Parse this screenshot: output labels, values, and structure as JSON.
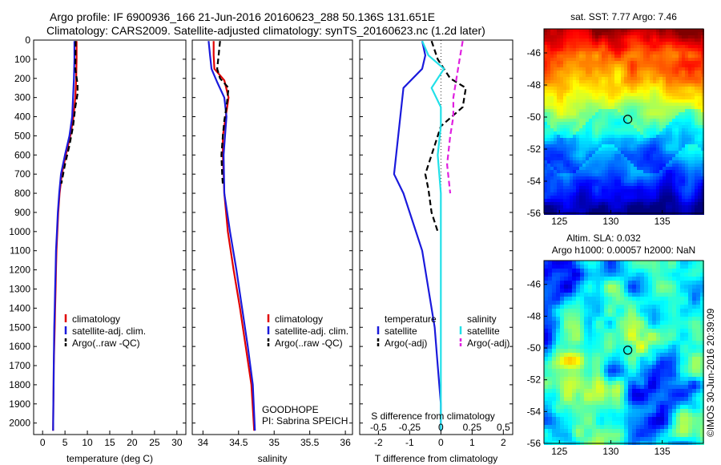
{
  "header": {
    "line1": "Argo profile: IF 6900936_166 21-Jun-2016 20160623_288 50.136S 131.651E",
    "line2": "Climatology: CARS2009. Satellite-adjusted climatology: synTS_20160623.nc (1.2d later)"
  },
  "credit": "©IMOS 30-Jun-2016 20:39:09",
  "colors": {
    "climatology": "#e00000",
    "satellite": "#1a1adc",
    "argo": "#000000",
    "satellite_s": "#22e0e8",
    "argo_s": "#e020e0"
  },
  "chart_data": [
    {
      "type": "line",
      "name": "temperature-profile",
      "xlabel": "temperature (deg C)",
      "ylabel": "",
      "xlim": [
        -2,
        32
      ],
      "ylim": [
        2060,
        0
      ],
      "xticks": [
        "0",
        "5",
        "10",
        "15",
        "20",
        "25",
        "30"
      ],
      "xtick_values": [
        0,
        5,
        10,
        15,
        20,
        25,
        30
      ],
      "yticks": [
        "0",
        "100",
        "200",
        "300",
        "400",
        "500",
        "600",
        "700",
        "800",
        "900",
        "1000",
        "1100",
        "1200",
        "1300",
        "1400",
        "1500",
        "1600",
        "1700",
        "1800",
        "1900",
        "2000"
      ],
      "ytick_values": [
        0,
        100,
        200,
        300,
        400,
        500,
        600,
        700,
        800,
        900,
        1000,
        1100,
        1200,
        1300,
        1400,
        1500,
        1600,
        1700,
        1800,
        1900,
        2000
      ],
      "legend": [
        "climatology",
        "satellite-adj. clim.",
        "Argo(..raw -QC)"
      ],
      "legend_placement": "lower-middle",
      "series": [
        {
          "name": "climatology",
          "color": "climatology",
          "dash": "solid",
          "points": [
            [
              7.6,
              5
            ],
            [
              7.6,
              100
            ],
            [
              7.5,
              200
            ],
            [
              7.3,
              300
            ],
            [
              6.9,
              400
            ],
            [
              6.2,
              500
            ],
            [
              5.2,
              600
            ],
            [
              4.3,
              700
            ],
            [
              3.8,
              800
            ],
            [
              3.5,
              900
            ],
            [
              3.3,
              1000
            ],
            [
              3.1,
              1100
            ],
            [
              3.0,
              1200
            ],
            [
              2.9,
              1300
            ],
            [
              2.8,
              1400
            ],
            [
              2.7,
              1500
            ],
            [
              2.6,
              1600
            ],
            [
              2.5,
              1700
            ],
            [
              2.45,
              1800
            ],
            [
              2.4,
              1900
            ],
            [
              2.35,
              2040
            ]
          ]
        },
        {
          "name": "satellite-adj. clim.",
          "color": "satellite",
          "dash": "solid",
          "points": [
            [
              7.1,
              5
            ],
            [
              7.1,
              100
            ],
            [
              7.0,
              200
            ],
            [
              6.8,
              300
            ],
            [
              6.6,
              400
            ],
            [
              6.0,
              500
            ],
            [
              5.0,
              600
            ],
            [
              4.1,
              700
            ],
            [
              3.7,
              800
            ],
            [
              3.4,
              900
            ],
            [
              3.2,
              1000
            ],
            [
              3.0,
              1100
            ],
            [
              2.9,
              1200
            ],
            [
              2.8,
              1300
            ],
            [
              2.7,
              1400
            ],
            [
              2.6,
              1500
            ],
            [
              2.55,
              1600
            ],
            [
              2.5,
              1700
            ],
            [
              2.45,
              1800
            ],
            [
              2.4,
              1900
            ],
            [
              2.35,
              2040
            ]
          ]
        },
        {
          "name": "Argo(..raw -QC)",
          "color": "argo",
          "dash": "dashed",
          "points": [
            [
              7.4,
              5
            ],
            [
              7.3,
              150
            ],
            [
              7.8,
              230
            ],
            [
              7.8,
              280
            ],
            [
              7.3,
              350
            ],
            [
              6.8,
              450
            ],
            [
              6.0,
              550
            ],
            [
              5.0,
              650
            ],
            [
              4.2,
              750
            ]
          ]
        }
      ]
    },
    {
      "type": "line",
      "name": "salinity-profile",
      "xlabel": "salinity",
      "xlim": [
        33.85,
        36.1
      ],
      "ylim": [
        2060,
        0
      ],
      "xticks": [
        "34",
        "34.5",
        "35",
        "35.5",
        "36"
      ],
      "xtick_values": [
        34,
        34.5,
        35,
        35.5,
        36
      ],
      "legend": [
        "climatology",
        "satellite-adj. clim.",
        "Argo(..raw -QC)"
      ],
      "legend_placement": "lower-middle",
      "annotations": [
        "GOODHOPE",
        "PI: Sabrina SPEICH"
      ],
      "series": [
        {
          "name": "climatology",
          "color": "climatology",
          "dash": "solid",
          "points": [
            [
              34.15,
              5
            ],
            [
              34.15,
              80
            ],
            [
              34.16,
              150
            ],
            [
              34.3,
              210
            ],
            [
              34.36,
              300
            ],
            [
              34.32,
              400
            ],
            [
              34.28,
              500
            ],
            [
              34.28,
              600
            ],
            [
              34.3,
              800
            ],
            [
              34.35,
              1000
            ],
            [
              34.43,
              1200
            ],
            [
              34.52,
              1400
            ],
            [
              34.6,
              1600
            ],
            [
              34.68,
              1800
            ],
            [
              34.72,
              2040
            ]
          ]
        },
        {
          "name": "satellite-adj. clim.",
          "color": "satellite",
          "dash": "solid",
          "points": [
            [
              34.08,
              5
            ],
            [
              34.1,
              80
            ],
            [
              34.12,
              150
            ],
            [
              34.2,
              220
            ],
            [
              34.3,
              300
            ],
            [
              34.33,
              400
            ],
            [
              34.31,
              500
            ],
            [
              34.29,
              600
            ],
            [
              34.3,
              800
            ],
            [
              34.38,
              1000
            ],
            [
              34.47,
              1200
            ],
            [
              34.55,
              1400
            ],
            [
              34.63,
              1600
            ],
            [
              34.7,
              1800
            ],
            [
              34.73,
              2040
            ]
          ]
        },
        {
          "name": "Argo(..raw -QC)",
          "color": "argo",
          "dash": "dashed",
          "points": [
            [
              34.24,
              5
            ],
            [
              34.22,
              80
            ],
            [
              34.2,
              150
            ],
            [
              34.24,
              200
            ],
            [
              34.36,
              250
            ],
            [
              34.33,
              350
            ],
            [
              34.3,
              420
            ],
            [
              34.28,
              500
            ],
            [
              34.26,
              600
            ],
            [
              34.27,
              700
            ],
            [
              34.28,
              760
            ]
          ]
        }
      ]
    },
    {
      "type": "line",
      "name": "difference-profile",
      "xlabel": "T difference from climatology",
      "top_axis_label": "S difference from climatology",
      "xlim": [
        -2.6,
        2.3
      ],
      "ylim": [
        2060,
        0
      ],
      "xticks": [
        "-2",
        "-1",
        "0",
        "1",
        "2"
      ],
      "xtick_values": [
        -2,
        -1,
        0,
        1,
        2
      ],
      "top_ticks": [
        "-0.5",
        "-0.25",
        "0",
        "0.25",
        "0.5"
      ],
      "top_tick_values": [
        -2,
        -1,
        0,
        1,
        2
      ],
      "legend_headers": [
        "temperature",
        "salinity"
      ],
      "legend": [
        "satellite",
        "Argo(-adj)",
        "satellite",
        "Argo(-adj)"
      ],
      "legend_placement": "lower-middle",
      "series": [
        {
          "name": "satellite",
          "group": "temperature",
          "color": "satellite",
          "dash": "solid",
          "points": [
            [
              -0.6,
              5
            ],
            [
              -0.5,
              80
            ],
            [
              -0.6,
              150
            ],
            [
              -1.2,
              250
            ],
            [
              -1.3,
              400
            ],
            [
              -1.4,
              550
            ],
            [
              -1.5,
              700
            ],
            [
              -1.2,
              800
            ],
            [
              -0.9,
              950
            ],
            [
              -0.6,
              1100
            ],
            [
              -0.4,
              1300
            ],
            [
              -0.2,
              1500
            ],
            [
              -0.1,
              1700
            ],
            [
              0.0,
              1900
            ],
            [
              0.0,
              2040
            ]
          ]
        },
        {
          "name": "Argo(-adj)",
          "group": "temperature",
          "color": "argo",
          "dash": "dashed",
          "points": [
            [
              -0.3,
              5
            ],
            [
              -0.1,
              100
            ],
            [
              0.3,
              200
            ],
            [
              0.8,
              250
            ],
            [
              0.7,
              350
            ],
            [
              0.0,
              450
            ],
            [
              -0.2,
              550
            ],
            [
              -0.5,
              700
            ],
            [
              -0.4,
              780
            ],
            [
              -0.3,
              900
            ],
            [
              -0.1,
              1000
            ]
          ]
        },
        {
          "name": "satellite",
          "group": "salinity",
          "color": "satellite_s",
          "dash": "solid",
          "points": [
            [
              -0.6,
              5
            ],
            [
              -0.4,
              80
            ],
            [
              0.1,
              150
            ],
            [
              -0.3,
              250
            ],
            [
              0.0,
              350
            ],
            [
              0.0,
              450
            ],
            [
              -0.1,
              600
            ],
            [
              0.0,
              800
            ],
            [
              0.0,
              1000
            ],
            [
              0.0,
              1300
            ],
            [
              0.0,
              1600
            ],
            [
              0.0,
              2040
            ]
          ]
        },
        {
          "name": "Argo(-adj)",
          "group": "salinity",
          "color": "argo_s",
          "dash": "dashed",
          "points": [
            [
              0.7,
              5
            ],
            [
              0.6,
              100
            ],
            [
              0.5,
              200
            ],
            [
              0.4,
              300
            ],
            [
              0.4,
              400
            ],
            [
              0.3,
              500
            ],
            [
              0.2,
              650
            ],
            [
              0.3,
              800
            ]
          ]
        }
      ]
    },
    {
      "type": "heatmap",
      "name": "sst-map",
      "title": "sat. SST: 7.77 Argo: 7.46",
      "xlim": [
        123.5,
        139
      ],
      "ylim": [
        -56,
        -44.5
      ],
      "xticks": [
        "125",
        "130",
        "135"
      ],
      "xtick_values": [
        125,
        130,
        135
      ],
      "yticks": [
        "-46",
        "-48",
        "-50",
        "-52",
        "-54",
        "-56"
      ],
      "ytick_values": [
        -46,
        -48,
        -50,
        -52,
        -54,
        -56
      ],
      "marker": [
        131.651,
        -50.136
      ]
    },
    {
      "type": "heatmap",
      "name": "sla-map",
      "title_lines": [
        "Altim. SLA: 0.032",
        "Argo h1000: 0.00057 h2000: NaN"
      ],
      "xlim": [
        123.5,
        139
      ],
      "ylim": [
        -56,
        -44.5
      ],
      "xticks": [
        "125",
        "130",
        "135"
      ],
      "xtick_values": [
        125,
        130,
        135
      ],
      "yticks": [
        "-46",
        "-48",
        "-50",
        "-52",
        "-54",
        "-56"
      ],
      "ytick_values": [
        -46,
        -48,
        -50,
        -52,
        -54,
        -56
      ],
      "marker": [
        131.651,
        -50.136
      ]
    }
  ]
}
